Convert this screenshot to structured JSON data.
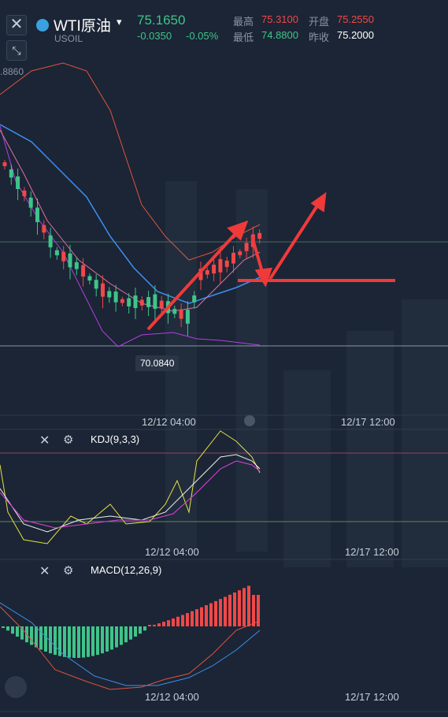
{
  "header": {
    "symbol": "WTI原油",
    "code": "USOIL",
    "price": "75.1650",
    "change": "-0.0350",
    "change_pct": "-0.05%",
    "high_label": "最高",
    "high": "75.3100",
    "open_label": "开盘",
    "open": "75.2550",
    "low_label": "最低",
    "low": "74.8800",
    "prev_close_label": "昨收",
    "prev_close": "75.2000"
  },
  "main_chart": {
    "axis_label": ".8860",
    "low_marker": "70.0840",
    "times": [
      "12/12 04:00",
      "12/17 12:00"
    ]
  },
  "kdj_panel": {
    "title": "KDJ(9,3,3)",
    "times": [
      "12/12 04:00",
      "12/17 12:00"
    ]
  },
  "macd_panel": {
    "title": "MACD(12,26,9)",
    "times": [
      "12/12 04:00",
      "12/17 12:00"
    ]
  }
}
